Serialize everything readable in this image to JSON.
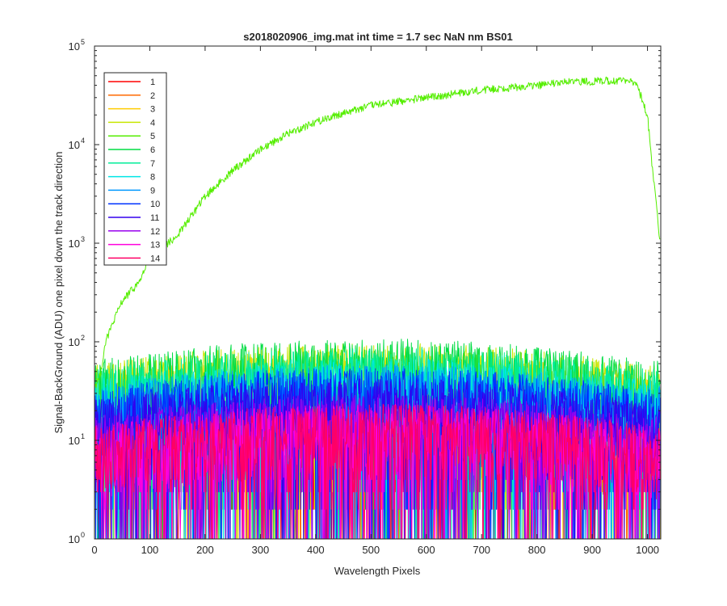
{
  "chart_data": {
    "type": "line",
    "title": "s2018020906_img.mat int time = 1.7 sec  NaN nm BS01",
    "xlabel": "Wavelength Pixels",
    "ylabel": "Signal-BackGround (ADU) one pixel down the track direction",
    "xlim": [
      0,
      1024
    ],
    "ylim": [
      1,
      100000
    ],
    "yscale": "log",
    "grid": false,
    "legend_position": "top-left",
    "x_ticks": [
      0,
      100,
      200,
      300,
      400,
      500,
      600,
      700,
      800,
      900,
      1000
    ],
    "x_tick_labels": [
      "0",
      "100",
      "200",
      "300",
      "400",
      "500",
      "600",
      "700",
      "800",
      "900",
      "1000"
    ],
    "y_ticks": [
      1,
      10,
      100,
      1000,
      10000,
      100000
    ],
    "y_tick_labels": [
      {
        "base": "10",
        "exp": "0"
      },
      {
        "base": "10",
        "exp": "1"
      },
      {
        "base": "10",
        "exp": "2"
      },
      {
        "base": "10",
        "exp": "3"
      },
      {
        "base": "10",
        "exp": "4"
      },
      {
        "base": "10",
        "exp": "5"
      }
    ],
    "series": [
      {
        "name": "1",
        "color": "#ff0000",
        "noise_median": 10
      },
      {
        "name": "2",
        "color": "#ff6a00",
        "noise_median": 14
      },
      {
        "name": "3",
        "color": "#ffcc00",
        "noise_median": 40
      },
      {
        "name": "4",
        "color": "#c8e600",
        "noise_median": 50
      },
      {
        "name": "5",
        "color": "#55ee00",
        "anchors": [
          [
            0,
            35
          ],
          [
            10,
            45
          ],
          [
            20,
            100
          ],
          [
            30,
            140
          ],
          [
            50,
            260
          ],
          [
            80,
            400
          ],
          [
            100,
            700
          ],
          [
            150,
            1200
          ],
          [
            200,
            3000
          ],
          [
            250,
            5500
          ],
          [
            300,
            9000
          ],
          [
            350,
            13000
          ],
          [
            400,
            17000
          ],
          [
            450,
            21000
          ],
          [
            500,
            25000
          ],
          [
            600,
            30000
          ],
          [
            700,
            36000
          ],
          [
            800,
            40000
          ],
          [
            850,
            43000
          ],
          [
            900,
            44000
          ],
          [
            950,
            45000
          ],
          [
            980,
            42000
          ],
          [
            1000,
            20000
          ],
          [
            1010,
            5000
          ],
          [
            1024,
            900
          ]
        ]
      },
      {
        "name": "6",
        "color": "#00dd44",
        "noise_median": 55
      },
      {
        "name": "7",
        "color": "#00ee99",
        "noise_median": 45
      },
      {
        "name": "8",
        "color": "#00e5e5",
        "noise_median": 35
      },
      {
        "name": "9",
        "color": "#0099ff",
        "noise_median": 30
      },
      {
        "name": "10",
        "color": "#0033ff",
        "noise_median": 28
      },
      {
        "name": "11",
        "color": "#3300ee",
        "noise_median": 22
      },
      {
        "name": "12",
        "color": "#9900ee",
        "noise_median": 15
      },
      {
        "name": "13",
        "color": "#ff00dd",
        "noise_median": 12
      },
      {
        "name": "14",
        "color": "#ff0066",
        "noise_median": 12
      }
    ]
  }
}
